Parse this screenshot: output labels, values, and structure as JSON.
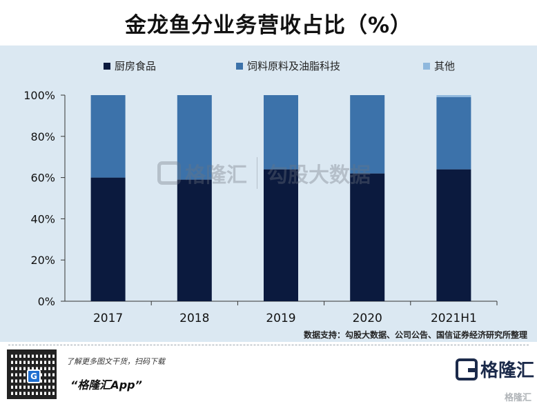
{
  "title": "金龙鱼分业务营收占比（%）",
  "legend": [
    {
      "label": "厨房食品",
      "color": "#0b1a3e"
    },
    {
      "label": "饲料原料及油脂科技",
      "color": "#3c72aa"
    },
    {
      "label": "其他",
      "color": "#8fb8dd"
    }
  ],
  "source": "数据支持：勾股大数据、公司公告、国信证券经济研究所整理",
  "watermark": {
    "brand": "格隆汇",
    "brand_url": "gelonghui.com",
    "secondary": "勾股大数据",
    "secondary_url": "www.gogudata.com"
  },
  "footer": {
    "promo": "了解更多图文干货，扫码下载",
    "app_name": "“格隆汇App”",
    "logo_text": "格隆汇",
    "logo_url": "www.gelonghui.com",
    "corner_mark": "格隆汇",
    "qr_letter": "G"
  },
  "chart_data": {
    "type": "bar",
    "stacked": true,
    "categories": [
      "2017",
      "2018",
      "2019",
      "2020",
      "2021H1"
    ],
    "series": [
      {
        "name": "厨房食品",
        "values": [
          60,
          59,
          64,
          62,
          64
        ]
      },
      {
        "name": "饲料原料及油脂科技",
        "values": [
          40,
          41,
          36,
          38,
          35
        ]
      },
      {
        "name": "其他",
        "values": [
          0,
          0,
          0,
          0,
          1
        ]
      }
    ],
    "yticks": [
      "0%",
      "20%",
      "40%",
      "60%",
      "80%",
      "100%"
    ],
    "ylim": [
      0,
      100
    ],
    "grid": false,
    "legend_position": "top"
  }
}
